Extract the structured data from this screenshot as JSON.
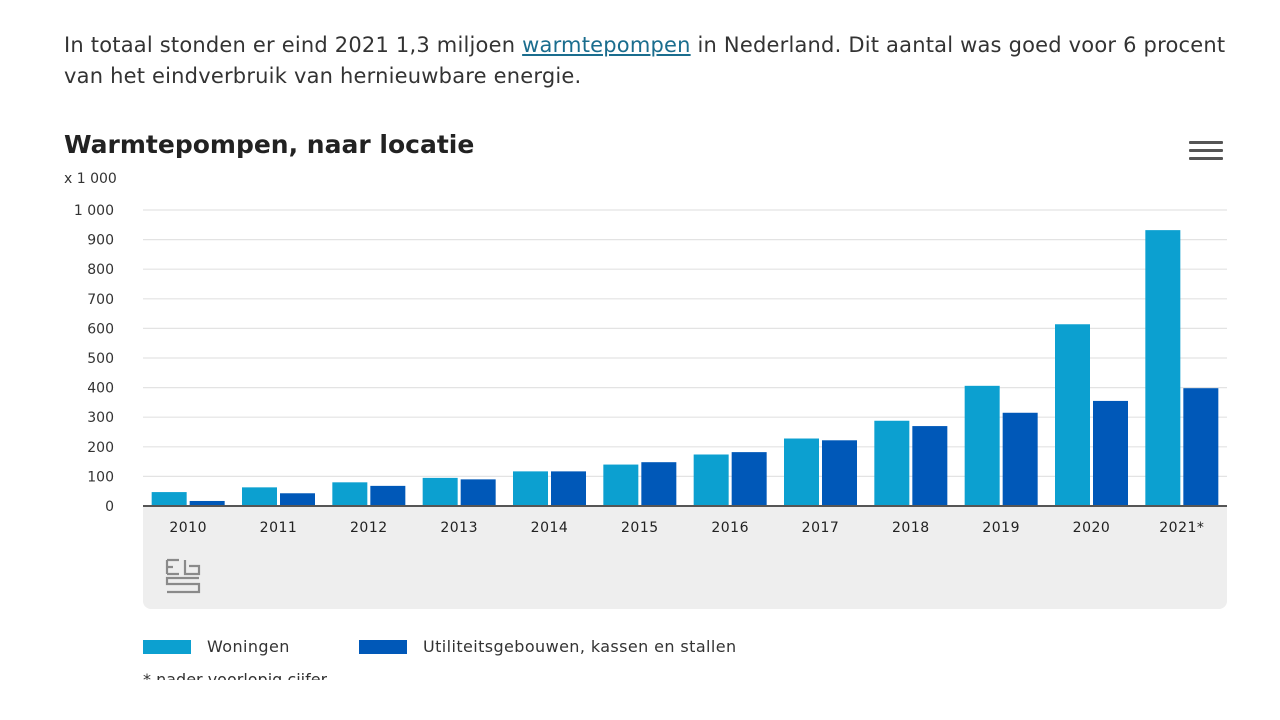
{
  "intro": {
    "before_link": "In totaal stonden er eind 2021 1,3 miljoen ",
    "link_text": "warmtepompen",
    "after_link": " in Nederland. Dit aantal was goed voor 6 procent van het eindverbruik van hernieuwbare energie."
  },
  "icons": {
    "menu": "hamburger-menu-icon",
    "logo": "cbs-logo-icon"
  },
  "chart_data": {
    "type": "bar",
    "title": "Warmtepompen, naar locatie",
    "unit_label": "x 1 000",
    "xlabel": "",
    "ylabel": "",
    "ylim": [
      0,
      1000
    ],
    "yticks": [
      0,
      100,
      200,
      300,
      400,
      500,
      600,
      700,
      800,
      900,
      1000
    ],
    "ytick_labels": [
      "0",
      "100",
      "200",
      "300",
      "400",
      "500",
      "600",
      "700",
      "800",
      "900",
      "1 000"
    ],
    "categories": [
      "2010",
      "2011",
      "2012",
      "2013",
      "2014",
      "2015",
      "2016",
      "2017",
      "2018",
      "2019",
      "2020",
      "2021*"
    ],
    "series": [
      {
        "name": "Woningen",
        "color": "#0ca0d0",
        "values": [
          47,
          63,
          80,
          95,
          117,
          140,
          174,
          228,
          288,
          406,
          614,
          932
        ]
      },
      {
        "name": "Utiliteitsgebouwen, kassen en stallen",
        "color": "#0058b8",
        "values": [
          17,
          43,
          68,
          90,
          117,
          148,
          182,
          222,
          270,
          315,
          355,
          398
        ]
      }
    ],
    "grid": true,
    "legend_position": "bottom"
  },
  "footer": {
    "partial_text": "* nader voorlopig cijfer"
  }
}
